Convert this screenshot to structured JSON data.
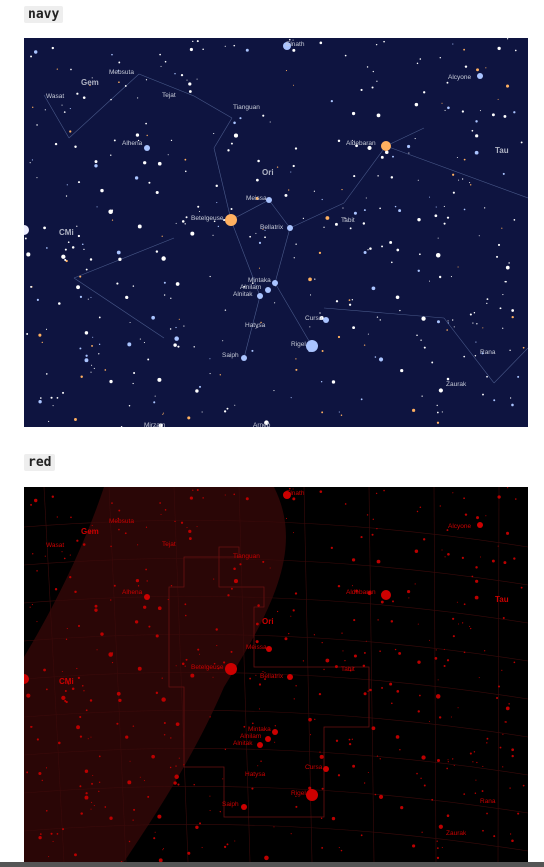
{
  "sections": [
    {
      "label": "navy"
    },
    {
      "label": "red"
    }
  ],
  "stars": [
    "Elnath",
    "Mebsuta",
    "Tejat",
    "Wasat",
    "Alcyone",
    "Tianguan",
    "Alhena",
    "Aldebaran",
    "Meissa",
    "Betelgeuse",
    "Bellatrix",
    "Tabit",
    "Mintaka",
    "Alnilam",
    "Alnitak",
    "Hatysa",
    "Cursa",
    "Rigel",
    "Saiph",
    "Rana",
    "Zaurak",
    "Mirzam",
    "Arneb"
  ],
  "constellations": [
    "Gem",
    "Tau",
    "Ori",
    "CMi"
  ]
}
